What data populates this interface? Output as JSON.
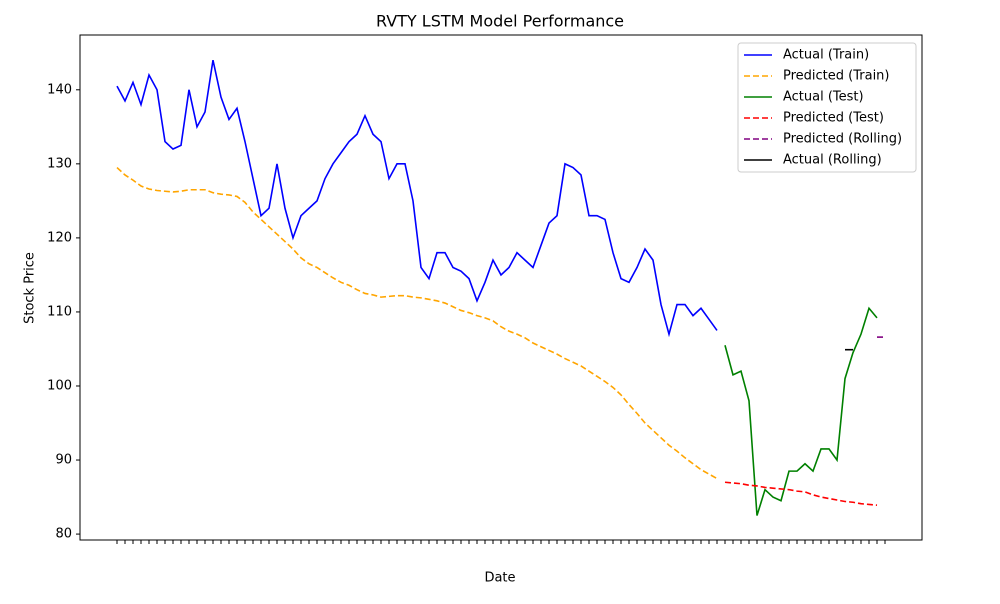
{
  "chart_data": {
    "type": "line",
    "title": "RVTY LSTM Model Performance",
    "x_label": "Date",
    "y_label": "Stock Price",
    "ylim": [
      79.2,
      147.4
    ],
    "yticks": [
      80,
      90,
      100,
      110,
      120,
      130,
      140
    ],
    "grid": false,
    "legend": "upper right",
    "series": [
      {
        "name": "Actual (Train)",
        "color": "#0000ff",
        "dash": false,
        "values": [
          140.5,
          138.5,
          141,
          138,
          142,
          140,
          133,
          132,
          132.5,
          140,
          135,
          137,
          144,
          139,
          136,
          137.5,
          133,
          128,
          123,
          124,
          130,
          124,
          120,
          123,
          124,
          125,
          128,
          130,
          131.5,
          133,
          134,
          136.5,
          134,
          133,
          128,
          130,
          130,
          125,
          116,
          114.5,
          118,
          118,
          116,
          115.5,
          114.5,
          111.5,
          114,
          117,
          115,
          116,
          118,
          117,
          116,
          119,
          122,
          123,
          130,
          129.5,
          128.5,
          123,
          123,
          122.5,
          118,
          114.5,
          114,
          116,
          118.5,
          117,
          111,
          107,
          111,
          111,
          109.5,
          110.5,
          109,
          107.5,
          null,
          null,
          null,
          null,
          null,
          null,
          null,
          null,
          null,
          null,
          null,
          null,
          null,
          null,
          null,
          null,
          null,
          null,
          null,
          null,
          null
        ]
      },
      {
        "name": "Predicted (Train)",
        "color": "#ffa500",
        "dash": true,
        "values": [
          129.5,
          128.5,
          127.8,
          127,
          126.6,
          126.4,
          126.3,
          126.2,
          126.3,
          126.5,
          126.5,
          126.5,
          126.1,
          125.9,
          125.8,
          125.6,
          124.8,
          123.5,
          122.5,
          121.5,
          120.5,
          119.5,
          118.5,
          117.3,
          116.5,
          116,
          115.3,
          114.6,
          114,
          113.6,
          113,
          112.5,
          112.3,
          112,
          112.1,
          112.2,
          112.2,
          112,
          111.9,
          111.7,
          111.5,
          111.2,
          110.7,
          110.2,
          109.9,
          109.5,
          109.2,
          108.8,
          108,
          107.4,
          107,
          106.5,
          105.8,
          105.3,
          104.8,
          104.3,
          103.7,
          103.2,
          102.7,
          102,
          101.3,
          100.6,
          99.8,
          98.8,
          97.5,
          96.3,
          95,
          94,
          93,
          92,
          91.2,
          90.3,
          89.5,
          88.7,
          88.1,
          87.5,
          null,
          null,
          null,
          null,
          null,
          null,
          null,
          null,
          null,
          null,
          null,
          null,
          null,
          null,
          null,
          null,
          null,
          null,
          null,
          null,
          null
        ]
      },
      {
        "name": "Actual (Test)",
        "color": "#008000",
        "dash": false,
        "values": [
          null,
          null,
          null,
          null,
          null,
          null,
          null,
          null,
          null,
          null,
          null,
          null,
          null,
          null,
          null,
          null,
          null,
          null,
          null,
          null,
          null,
          null,
          null,
          null,
          null,
          null,
          null,
          null,
          null,
          null,
          null,
          null,
          null,
          null,
          null,
          null,
          null,
          null,
          null,
          null,
          null,
          null,
          null,
          null,
          null,
          null,
          null,
          null,
          null,
          null,
          null,
          null,
          null,
          null,
          null,
          null,
          null,
          null,
          null,
          null,
          null,
          null,
          null,
          null,
          null,
          null,
          null,
          null,
          null,
          null,
          null,
          null,
          null,
          null,
          null,
          null,
          105.5,
          101.5,
          102,
          98,
          82.5,
          86,
          85,
          84.5,
          88.5,
          88.5,
          89.5,
          88.5,
          91.5,
          91.5,
          90,
          101,
          104.5,
          107,
          110.5,
          109.2,
          null
        ]
      },
      {
        "name": "Predicted (Test)",
        "color": "#ff0000",
        "dash": true,
        "values": [
          null,
          null,
          null,
          null,
          null,
          null,
          null,
          null,
          null,
          null,
          null,
          null,
          null,
          null,
          null,
          null,
          null,
          null,
          null,
          null,
          null,
          null,
          null,
          null,
          null,
          null,
          null,
          null,
          null,
          null,
          null,
          null,
          null,
          null,
          null,
          null,
          null,
          null,
          null,
          null,
          null,
          null,
          null,
          null,
          null,
          null,
          null,
          null,
          null,
          null,
          null,
          null,
          null,
          null,
          null,
          null,
          null,
          null,
          null,
          null,
          null,
          null,
          null,
          null,
          null,
          null,
          null,
          null,
          null,
          null,
          null,
          null,
          null,
          null,
          null,
          null,
          87,
          86.9,
          86.8,
          86.6,
          86.5,
          86.3,
          86.2,
          86.1,
          86,
          85.8,
          85.7,
          85.3,
          85,
          84.8,
          84.6,
          84.4,
          84.3,
          84.1,
          84,
          83.9,
          null
        ]
      },
      {
        "name": "Predicted (Rolling)",
        "color": "#800080",
        "dash": true,
        "values": [
          null,
          null,
          null,
          null,
          null,
          null,
          null,
          null,
          null,
          null,
          null,
          null,
          null,
          null,
          null,
          null,
          null,
          null,
          null,
          null,
          null,
          null,
          null,
          null,
          null,
          null,
          null,
          null,
          null,
          null,
          null,
          null,
          null,
          null,
          null,
          null,
          null,
          null,
          null,
          null,
          null,
          null,
          null,
          null,
          null,
          null,
          null,
          null,
          null,
          null,
          null,
          null,
          null,
          null,
          null,
          null,
          null,
          null,
          null,
          null,
          null,
          null,
          null,
          null,
          null,
          null,
          null,
          null,
          null,
          null,
          null,
          null,
          null,
          null,
          null,
          null,
          null,
          null,
          null,
          null,
          null,
          null,
          null,
          null,
          null,
          null,
          null,
          null,
          null,
          null,
          null,
          null,
          null,
          null,
          null,
          106.6,
          106.6
        ]
      },
      {
        "name": "Actual (Rolling)",
        "color": "#000000",
        "dash": false,
        "values": [
          null,
          null,
          null,
          null,
          null,
          null,
          null,
          null,
          null,
          null,
          null,
          null,
          null,
          null,
          null,
          null,
          null,
          null,
          null,
          null,
          null,
          null,
          null,
          null,
          null,
          null,
          null,
          null,
          null,
          null,
          null,
          null,
          null,
          null,
          null,
          null,
          null,
          null,
          null,
          null,
          null,
          null,
          null,
          null,
          null,
          null,
          null,
          null,
          null,
          null,
          null,
          null,
          null,
          null,
          null,
          null,
          null,
          null,
          null,
          null,
          null,
          null,
          null,
          null,
          null,
          null,
          null,
          null,
          null,
          null,
          null,
          null,
          null,
          null,
          null,
          null,
          null,
          null,
          null,
          null,
          null,
          null,
          null,
          null,
          null,
          null,
          null,
          null,
          null,
          null,
          null,
          104.9,
          104.9
        ]
      }
    ]
  }
}
